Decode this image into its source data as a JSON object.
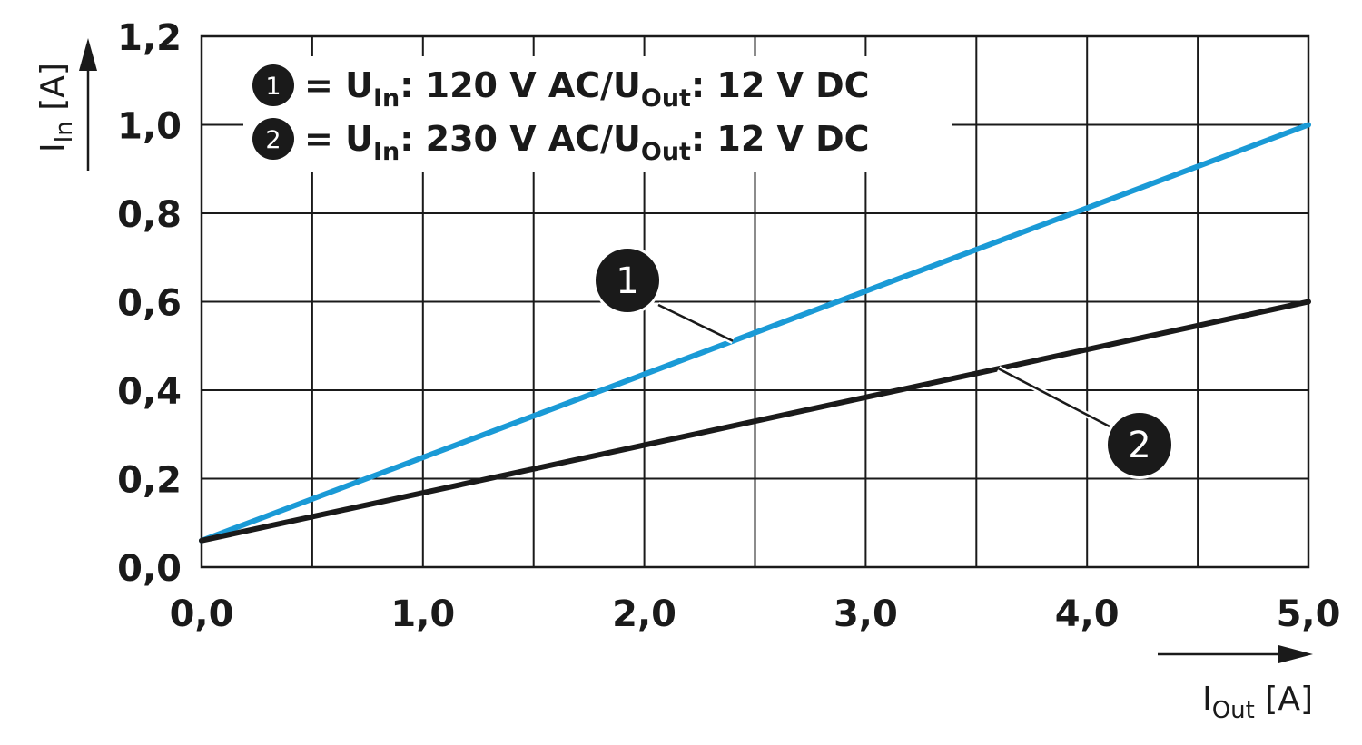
{
  "chart_data": {
    "type": "line",
    "xlabel": {
      "main": "I",
      "sub": "Out",
      "unit": " [A]"
    },
    "ylabel": {
      "main": "I",
      "sub": "In",
      "unit": " [A]"
    },
    "xlim": [
      0,
      5
    ],
    "ylim": [
      0,
      1.2
    ],
    "grid": true,
    "legend_position": "top-left",
    "x_ticks": [
      "0,0",
      "1,0",
      "2,0",
      "3,0",
      "4,0",
      "5,0"
    ],
    "y_ticks": [
      "0,0",
      "0,2",
      "0,4",
      "0,6",
      "0,8",
      "1,0",
      "1,2"
    ],
    "series": [
      {
        "marker": "1",
        "color": "#1a9ad6",
        "x": [
          0,
          5
        ],
        "y": [
          0.06,
          1.0
        ],
        "legend": {
          "pre": "= U",
          "sub1": "In",
          "mid": ": 120 V AC/U",
          "sub2": "Out",
          "post": ": 12 V DC"
        }
      },
      {
        "marker": "2",
        "color": "#1a1a1a",
        "x": [
          0,
          5
        ],
        "y": [
          0.06,
          0.6
        ],
        "legend": {
          "pre": "= U",
          "sub1": "In",
          "mid": ": 230 V AC/U",
          "sub2": "Out",
          "post": ": 12 V DC"
        }
      }
    ]
  }
}
